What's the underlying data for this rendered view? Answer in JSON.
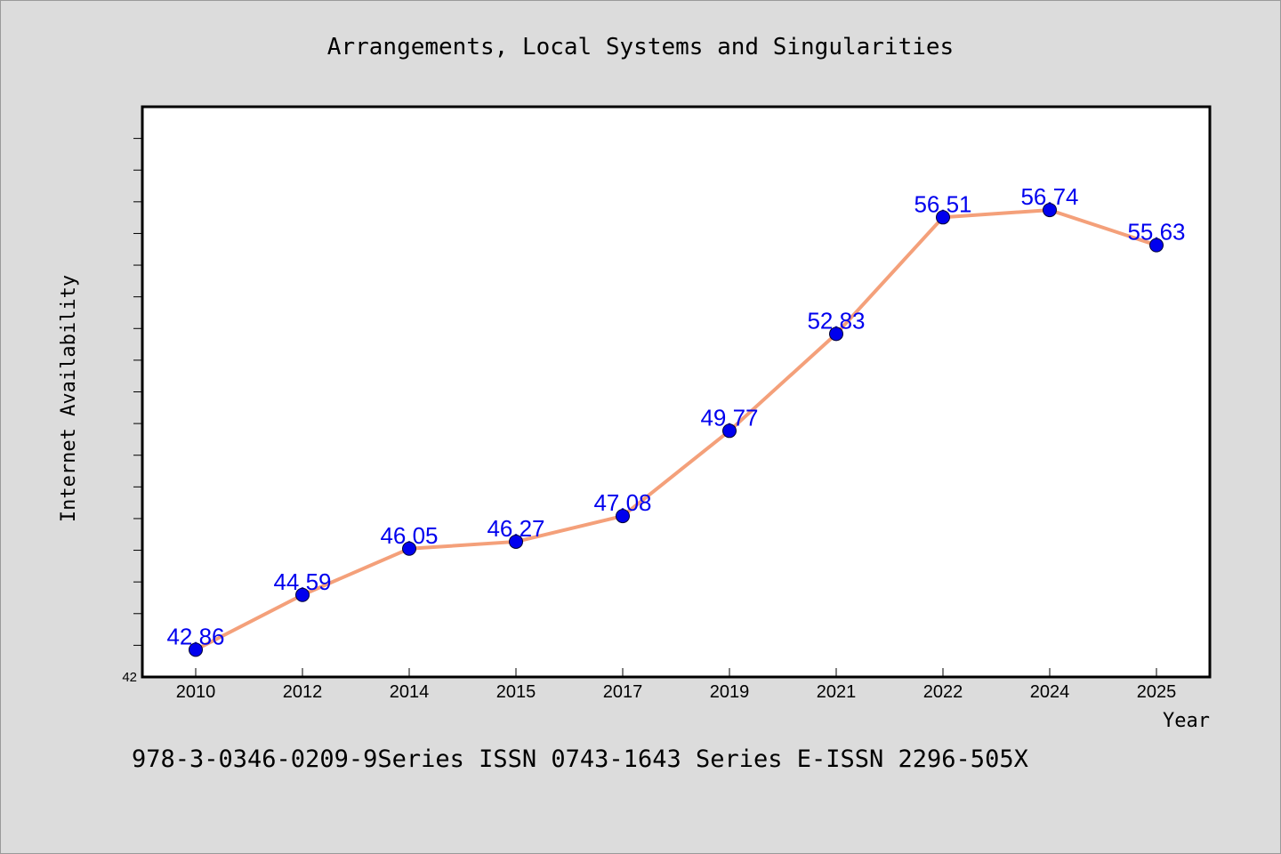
{
  "chart_data": {
    "type": "line",
    "title": "Arrangements, Local Systems and Singularities",
    "xlabel": "Year",
    "ylabel": "Internet Availability",
    "categories": [
      "2010",
      "2012",
      "2014",
      "2015",
      "2017",
      "2019",
      "2021",
      "2022",
      "2024",
      "2025"
    ],
    "series": [
      {
        "values": [
          42.86,
          44.59,
          46.05,
          46.27,
          47.08,
          49.77,
          52.83,
          56.51,
          56.74,
          55.63
        ],
        "labels": [
          "42.86",
          "44.59",
          "46.05",
          "46.27",
          "47.08",
          "49.77",
          "52.83",
          "56.51",
          "56.74",
          "55.63"
        ]
      }
    ],
    "ylim": [
      42,
      60
    ],
    "yticks_labeled": [
      "42"
    ],
    "grid": false,
    "line_color": "#f4a07a",
    "marker_color": "#0000ee",
    "label_color": "#0000ee"
  },
  "footer": "978-3-0346-0209-9Series ISSN 0743-1643 Series E-ISSN 2296-505X"
}
